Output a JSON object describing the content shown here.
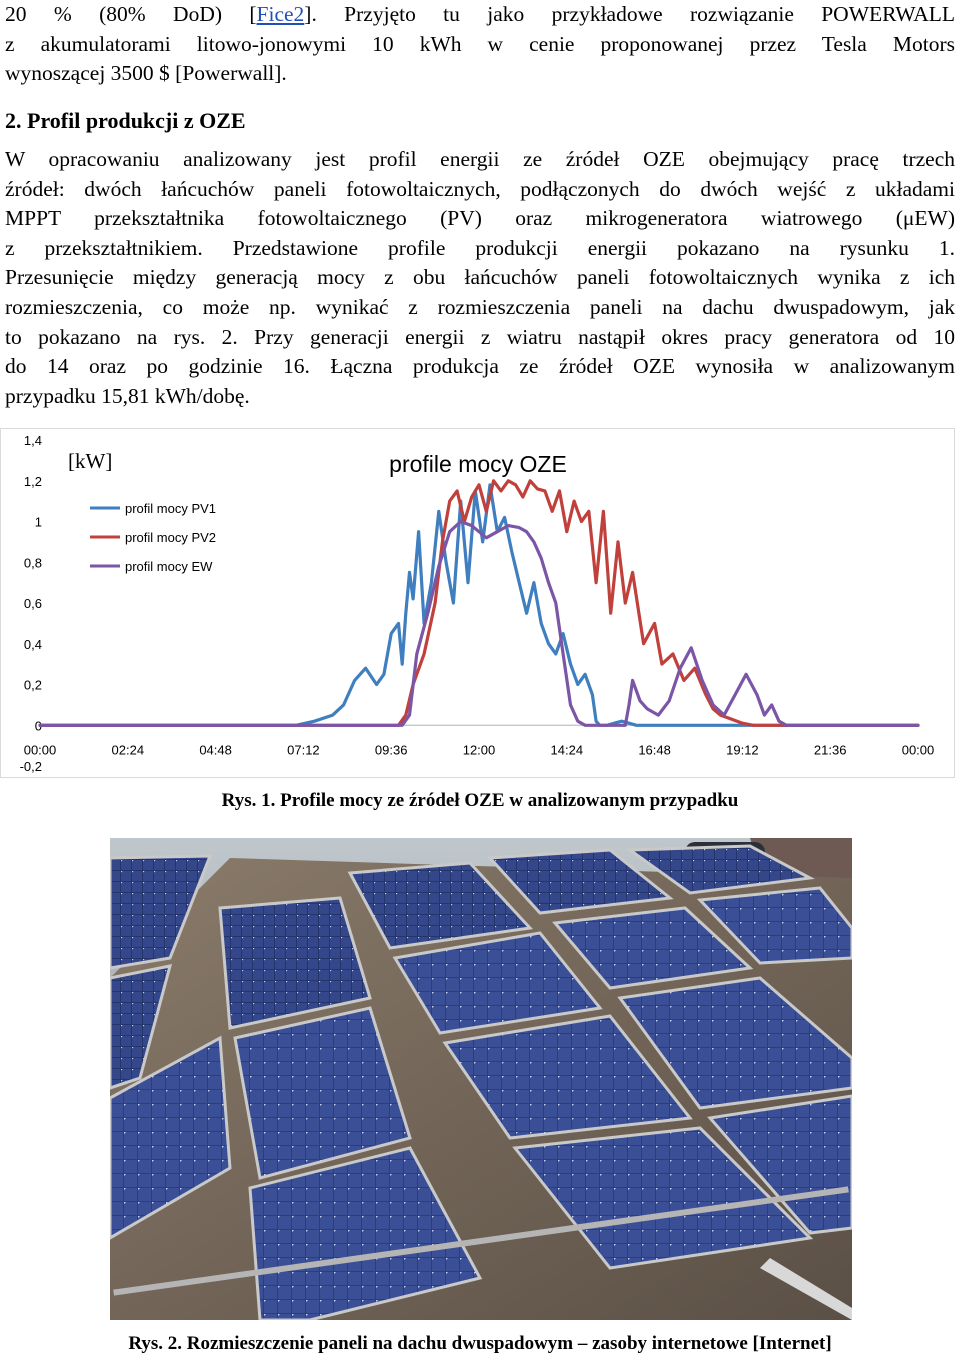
{
  "paragraph_1": {
    "line_1_pre": "20 % (80% DoD) [",
    "line_1_link": "Fice2",
    "line_1_post": "]. Przyjęto tu jako przykładowe rozwiązanie POWERWALL",
    "line_2": "z akumulatorami litowo-jonowymi 10 kWh w cenie proponowanej przez Tesla Motors",
    "line_3": "wynoszącej 3500 $ [Powerwall]."
  },
  "section_heading": "2. Profil produkcji z OZE",
  "paragraph_2": {
    "lines": [
      "W opracowaniu analizowany jest profil energii ze źródeł OZE obejmujący pracę trzech",
      "źródeł: dwóch łańcuchów paneli fotowoltaicznych, podłączonych do dwóch wejść z układami",
      "MPPT przekształtnika fotowoltaicznego (PV) oraz mikrogeneratora wiatrowego (μEW)",
      "z przekształtnikiem. Przedstawione profile produkcji energii pokazano na rysunku 1.",
      "Przesunięcie między generacją mocy z obu łańcuchów paneli fotowoltaicznych wynika z ich",
      "rozmieszczenia, co może np. wynikać z rozmieszczenia paneli na dachu dwuspadowym, jak",
      "to pokazano na rys. 2. Przy generacji energii z wiatru nastąpił okres pracy generatora od 10",
      "do 14 oraz po godzinie 16. Łączna produkcja ze źródeł OZE wynosiła w analizowanym",
      "przypadku 15,81 kWh/dobę."
    ]
  },
  "chart_data": {
    "type": "line",
    "title": "profile mocy OZE",
    "ylabel": "[kW]",
    "xlabel": "",
    "ylim": [
      -0.2,
      1.4
    ],
    "y_ticks": [
      "1,4",
      "1,2",
      "1",
      "0,8",
      "0,6",
      "0,4",
      "0,2",
      "0",
      "-0,2"
    ],
    "x_ticks": [
      "00:00",
      "02:24",
      "04:48",
      "07:12",
      "09:36",
      "12:00",
      "14:24",
      "16:48",
      "19:12",
      "21:36",
      "00:00"
    ],
    "x_unit": "hours",
    "xlim": [
      0,
      24
    ],
    "legend_position": "top-left",
    "series": [
      {
        "name": "profil mocy PV1",
        "color": "#3f7ebf",
        "x": [
          0,
          7,
          7.5,
          8,
          8.3,
          8.6,
          8.9,
          9.2,
          9.4,
          9.6,
          9.8,
          9.9,
          10,
          10.1,
          10.2,
          10.35,
          10.5,
          10.7,
          10.9,
          11.1,
          11.3,
          11.5,
          11.7,
          11.9,
          12.1,
          12.3,
          12.5,
          12.7,
          12.9,
          13.1,
          13.3,
          13.5,
          13.7,
          13.9,
          14.1,
          14.3,
          14.5,
          14.7,
          14.9,
          15.1,
          15.2,
          15.3,
          15.5,
          15.7,
          15.9,
          16.1,
          16.3,
          24
        ],
        "y": [
          0,
          0,
          0.02,
          0.05,
          0.1,
          0.22,
          0.28,
          0.2,
          0.25,
          0.45,
          0.5,
          0.3,
          0.55,
          0.75,
          0.62,
          0.95,
          0.5,
          0.7,
          1.05,
          0.8,
          0.6,
          1.1,
          0.7,
          1.15,
          0.9,
          1.18,
          0.95,
          1.02,
          0.85,
          0.7,
          0.55,
          0.7,
          0.5,
          0.4,
          0.35,
          0.45,
          0.3,
          0.2,
          0.25,
          0.15,
          0.02,
          0,
          0,
          0.01,
          0.02,
          0.01,
          0,
          0
        ]
      },
      {
        "name": "profil mocy PV2",
        "color": "#c0413c",
        "x": [
          0,
          9.8,
          10,
          10.2,
          10.5,
          10.8,
          11,
          11.2,
          11.4,
          11.6,
          11.8,
          12,
          12.2,
          12.4,
          12.6,
          12.8,
          13,
          13.2,
          13.4,
          13.6,
          13.8,
          14,
          14.2,
          14.4,
          14.6,
          14.8,
          15,
          15.2,
          15.4,
          15.6,
          15.8,
          16,
          16.2,
          16.5,
          16.8,
          17,
          17.3,
          17.6,
          17.9,
          18.2,
          18.4,
          18.6,
          18.9,
          19.2,
          19.5,
          24
        ],
        "y": [
          0,
          0,
          0.05,
          0.2,
          0.35,
          0.6,
          0.9,
          1.1,
          1.15,
          1.0,
          1.12,
          1.18,
          1.05,
          1.2,
          1.15,
          1.2,
          1.18,
          1.12,
          1.2,
          1.16,
          1.15,
          1.05,
          1.15,
          0.95,
          1.1,
          1.0,
          1.05,
          0.7,
          1.05,
          0.55,
          0.9,
          0.6,
          0.75,
          0.4,
          0.5,
          0.3,
          0.35,
          0.22,
          0.28,
          0.15,
          0.08,
          0.05,
          0.03,
          0.01,
          0,
          0
        ]
      },
      {
        "name": "profil mocy EW",
        "color": "#7b56a6",
        "x": [
          0,
          9.9,
          10.1,
          10.3,
          10.6,
          10.9,
          11.2,
          11.5,
          11.8,
          12,
          12.2,
          12.5,
          12.8,
          13.1,
          13.3,
          13.5,
          13.7,
          13.9,
          14.1,
          14.3,
          14.5,
          14.7,
          14.9,
          15.1,
          15.3,
          15.5,
          15.8,
          16,
          16.1,
          16.2,
          16.4,
          16.6,
          16.9,
          17.2,
          17.5,
          17.8,
          18.1,
          18.4,
          18.7,
          19,
          19.3,
          19.6,
          19.8,
          20,
          20.2,
          20.4,
          20.6,
          24
        ],
        "y": [
          0,
          0,
          0.05,
          0.35,
          0.55,
          0.78,
          0.95,
          1.0,
          0.98,
          0.95,
          0.92,
          0.95,
          0.98,
          0.97,
          0.95,
          0.9,
          0.82,
          0.7,
          0.6,
          0.35,
          0.1,
          0.02,
          0,
          0,
          0,
          0,
          0,
          0,
          0.1,
          0.22,
          0.12,
          0.08,
          0.05,
          0.12,
          0.28,
          0.38,
          0.22,
          0.1,
          0.05,
          0.15,
          0.25,
          0.15,
          0.05,
          0.1,
          0.02,
          0,
          0,
          0
        ]
      }
    ]
  },
  "caption_1": "Rys. 1.  Profile mocy ze źródeł OZE w analizowanym przypadku",
  "caption_2": "Rys. 2.  Rozmieszczenie paneli na dachu dwuspadowym – zasoby internetowe [Internet]"
}
